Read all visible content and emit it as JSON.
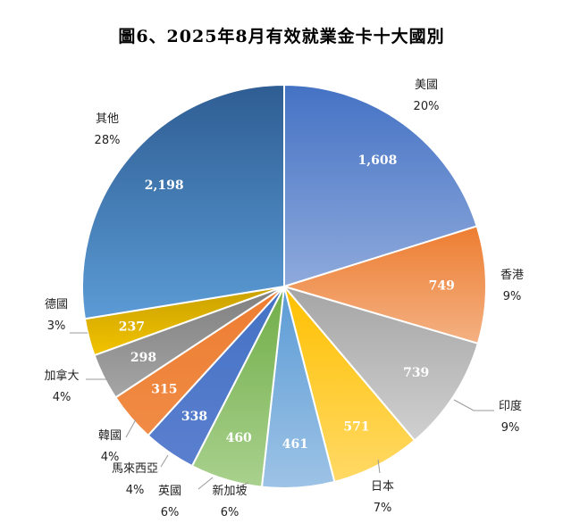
{
  "chart_data": {
    "type": "pie",
    "title": "圖6、2025年8月有效就業金卡十大國別",
    "slices": [
      {
        "name": "美國",
        "value": 1608,
        "value_label": "1,608",
        "percent_label": "20%",
        "color_a": "#4472C4",
        "color_b": "#8FAADC"
      },
      {
        "name": "香港",
        "value": 749,
        "value_label": "749",
        "percent_label": "9%",
        "color_a": "#ED7D31",
        "color_b": "#F4B183"
      },
      {
        "name": "印度",
        "value": 739,
        "value_label": "739",
        "percent_label": "9%",
        "color_a": "#A5A5A5",
        "color_b": "#D0D0D0"
      },
      {
        "name": "日本",
        "value": 571,
        "value_label": "571",
        "percent_label": "7%",
        "color_a": "#FFC000",
        "color_b": "#FFD966"
      },
      {
        "name": "新加坡",
        "value": 461,
        "value_label": "461",
        "percent_label": "6%",
        "color_a": "#5B9BD5",
        "color_b": "#9DC3E6"
      },
      {
        "name": "英國",
        "value": 460,
        "value_label": "460",
        "percent_label": "6%",
        "color_a": "#70AD47",
        "color_b": "#A9D18E"
      },
      {
        "name": "馬來西亞",
        "value": 338,
        "value_label": "338",
        "percent_label": "4%",
        "color_a": "#4472C4",
        "color_b": "#5B7FCF"
      },
      {
        "name": "韓國",
        "value": 315,
        "value_label": "315",
        "percent_label": "4%",
        "color_a": "#ED7D31",
        "color_b": "#F08B45"
      },
      {
        "name": "加拿大",
        "value": 298,
        "value_label": "298",
        "percent_label": "4%",
        "color_a": "#7F7F7F",
        "color_b": "#A5A5A5"
      },
      {
        "name": "德國",
        "value": 237,
        "value_label": "237",
        "percent_label": "3%",
        "color_a": "#C9A100",
        "color_b": "#F2C200"
      },
      {
        "name": "其他",
        "value": 2198,
        "value_label": "2,198",
        "percent_label": "28%",
        "color_a": "#2E5D93",
        "color_b": "#5B9BD5"
      }
    ]
  }
}
